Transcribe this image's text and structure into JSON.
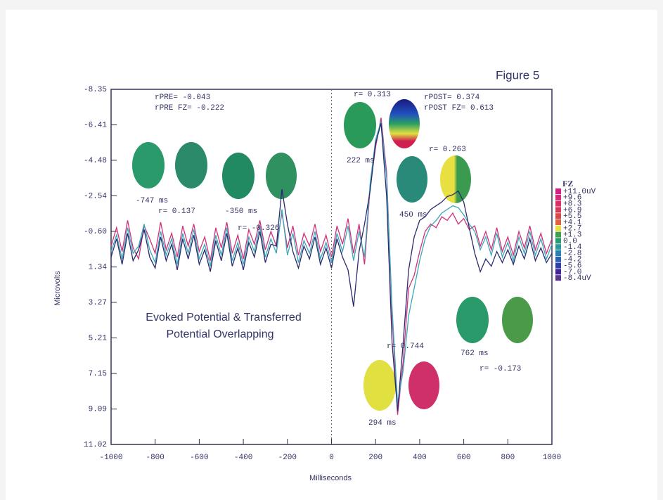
{
  "chart_data": {
    "type": "line",
    "title": "Figure 5",
    "xlabel": "Milliseconds",
    "ylabel": "Microvolts",
    "y_inverted": true,
    "xlim": [
      -1000,
      1000
    ],
    "xticks": [
      -1000,
      -800,
      -600,
      -400,
      -200,
      0,
      200,
      400,
      600,
      800,
      1000
    ],
    "ylim": [
      -8.35,
      11.02
    ],
    "yticks": [
      -8.35,
      -6.41,
      -4.48,
      -2.54,
      {
        "value": -0.6,
        "label": "-0.60"
      },
      1.34,
      3.27,
      5.21,
      7.15,
      9.09,
      11.02
    ],
    "x": [
      -1000,
      -975,
      -950,
      -925,
      -900,
      -875,
      -850,
      -825,
      -800,
      -775,
      -750,
      -725,
      -700,
      -675,
      -650,
      -625,
      -600,
      -575,
      -550,
      -525,
      -500,
      -475,
      -450,
      -425,
      -400,
      -375,
      -350,
      -325,
      -300,
      -275,
      -250,
      -225,
      -200,
      -175,
      -150,
      -125,
      -100,
      -75,
      -50,
      -25,
      0,
      25,
      50,
      75,
      100,
      125,
      150,
      175,
      200,
      225,
      250,
      275,
      300,
      325,
      350,
      375,
      400,
      425,
      450,
      475,
      500,
      525,
      550,
      575,
      600,
      625,
      650,
      675,
      700,
      725,
      750,
      775,
      800,
      825,
      850,
      875,
      900,
      925,
      950,
      975,
      1000
    ],
    "series": [
      {
        "color": "#d0307a",
        "values": [
          0.2,
          -0.8,
          0.5,
          -1.2,
          0.3,
          0.9,
          -0.9,
          -0.2,
          0.6,
          -1.1,
          0.4,
          -0.5,
          0.8,
          -0.9,
          0.2,
          -1.0,
          0.5,
          -0.3,
          1.0,
          -0.8,
          0.3,
          -1.1,
          0.6,
          -0.4,
          0.9,
          -0.7,
          0.1,
          -1.2,
          0.4,
          -0.6,
          0.2,
          -1.6,
          0.3,
          -0.9,
          0.7,
          -0.5,
          0.2,
          -1.0,
          0.5,
          -0.4,
          0.8,
          -0.9,
          0.1,
          -1.3,
          0.6,
          -1.0,
          1.2,
          -3.0,
          -5.2,
          -6.8,
          -3.8,
          4.0,
          9.4,
          6.5,
          2.5,
          1.8,
          0.5,
          -0.6,
          -1.0,
          -0.8,
          -1.4,
          -1.2,
          -1.6,
          -1.0,
          -1.3,
          -0.7,
          -0.9,
          0.2,
          -0.6,
          0.4,
          -0.8,
          0.5,
          -0.3,
          0.7,
          -0.6,
          0.3,
          -0.9,
          0.4,
          -0.5,
          0.6,
          -0.2
        ]
      },
      {
        "color": "#3aa8b8",
        "values": [
          0.5,
          -0.4,
          0.9,
          -0.8,
          0.6,
          0.2,
          -1.0,
          0.4,
          1.1,
          -0.6,
          0.7,
          -0.2,
          1.2,
          -0.5,
          0.6,
          -0.7,
          0.9,
          0.1,
          1.3,
          -0.4,
          0.7,
          -0.8,
          1.0,
          0.0,
          1.2,
          -0.3,
          0.5,
          -0.9,
          0.8,
          -0.2,
          0.6,
          -1.8,
          0.7,
          -0.5,
          1.1,
          -0.1,
          0.6,
          -0.6,
          0.9,
          0.0,
          1.1,
          -0.5,
          0.5,
          -0.9,
          1.0,
          -0.6,
          0.8,
          -3.2,
          -5.6,
          -6.6,
          -3.5,
          3.6,
          8.8,
          7.0,
          4.0,
          2.5,
          1.0,
          -0.2,
          -0.9,
          -1.2,
          -1.6,
          -1.8,
          -2.0,
          -1.9,
          -1.5,
          -1.0,
          -0.6,
          0.4,
          -0.3,
          0.7,
          -0.5,
          0.8,
          0.0,
          1.0,
          -0.3,
          0.6,
          -0.6,
          0.7,
          -0.2,
          0.9,
          0.1
        ]
      },
      {
        "color": "#2a2a70",
        "values": [
          0.8,
          -0.2,
          1.2,
          -0.5,
          1.0,
          0.4,
          -0.7,
          0.8,
          1.4,
          -0.3,
          1.0,
          0.1,
          1.5,
          -0.2,
          0.9,
          -0.4,
          1.2,
          0.4,
          1.6,
          -0.1,
          1.0,
          -0.5,
          1.3,
          0.3,
          1.5,
          0.0,
          0.8,
          -0.6,
          1.1,
          0.1,
          0.2,
          -2.9,
          -1.0,
          0.5,
          1.4,
          0.2,
          0.9,
          -0.3,
          1.2,
          0.3,
          1.4,
          -0.2,
          0.8,
          1.5,
          3.5,
          0.5,
          -1.0,
          -2.8,
          -5.4,
          -6.5,
          -2.5,
          5.5,
          9.2,
          5.5,
          1.5,
          -0.3,
          -1.2,
          -1.4,
          -1.8,
          -2.0,
          -2.2,
          -2.5,
          -2.6,
          -2.8,
          -2.2,
          -0.8,
          0.6,
          1.6,
          0.9,
          1.3,
          0.5,
          1.1,
          0.4,
          1.2,
          0.2,
          0.9,
          -0.2,
          1.0,
          0.3,
          1.1,
          0.6
        ]
      }
    ],
    "annotations": [
      "rPRE= -0.043",
      "rPRE FZ= -0.222",
      "r= 0.313",
      "rPOST= 0.374",
      "rPOST FZ= 0.613",
      "222 ms",
      "r= 0.263",
      "-747 ms",
      "r= 0.137",
      "-350 ms",
      "r= -0.326",
      "450 ms",
      "r= 0.744",
      "294 ms",
      "762 ms",
      "r= -0.173",
      "Evoked Potential & Transferred",
      "Potential Overlapping"
    ],
    "colorbar": {
      "title": "FZ",
      "labels": [
        "+11.0uV",
        "+9.6",
        "+8.3",
        "+6.9",
        "+5.5",
        "+4.1",
        "+2.7",
        "+1.3",
        "0.0",
        "-1.4",
        "-2.8",
        "-4.2",
        "-5.6",
        "-7.0",
        "-8.4uV"
      ],
      "colors": [
        "#d0208a",
        "#d8287a",
        "#d8306a",
        "#d83858",
        "#d84848",
        "#e06040",
        "#e8e040",
        "#40a050",
        "#2a9a70",
        "#2a9a9a",
        "#2a80b0",
        "#2a60b0",
        "#3040a8",
        "#402898",
        "#5a3890"
      ]
    }
  }
}
